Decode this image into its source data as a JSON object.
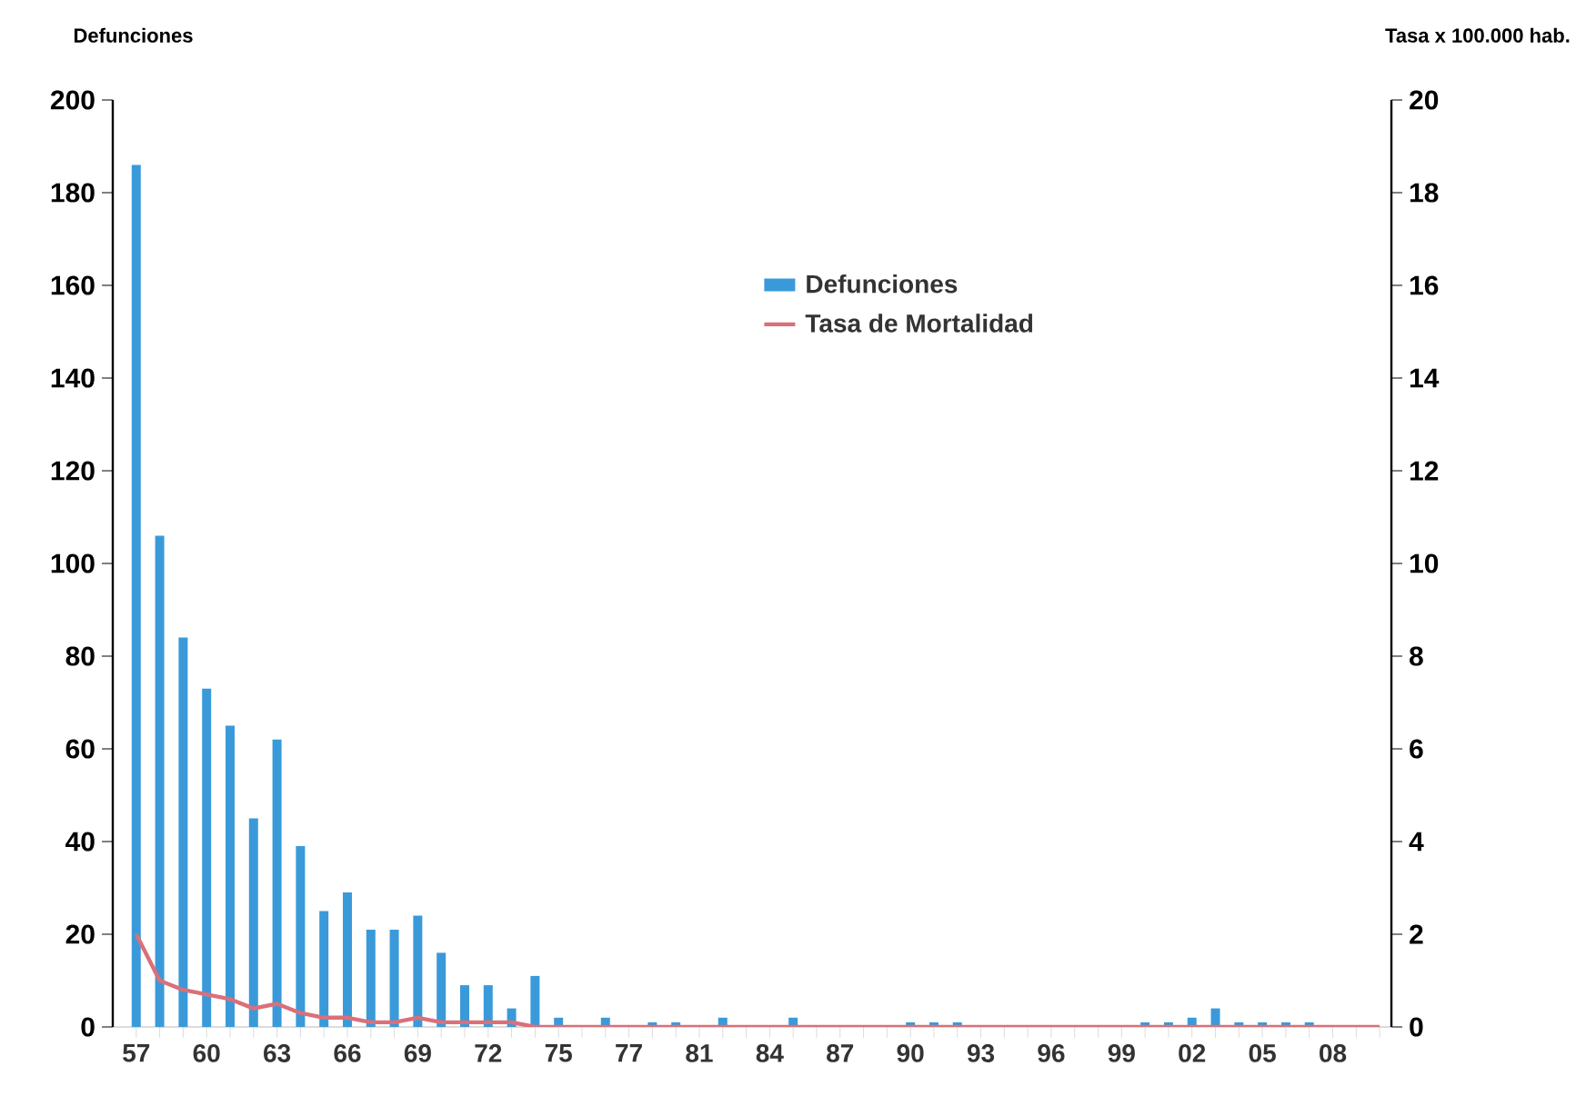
{
  "chart_data": {
    "type": "bar",
    "ylabel": "Defunciones",
    "y2label": "Tasa x 100.000 hab.",
    "categories": [
      "57",
      null,
      null,
      "60",
      null,
      null,
      "63",
      null,
      null,
      "66",
      null,
      null,
      "69",
      null,
      null,
      "72",
      null,
      null,
      "75",
      null,
      null,
      "77",
      null,
      null,
      "81",
      null,
      null,
      "84",
      null,
      null,
      "87",
      null,
      null,
      "90",
      null,
      null,
      "93",
      null,
      null,
      "96",
      null,
      null,
      "99",
      null,
      null,
      "02",
      null,
      null,
      "05",
      null,
      null,
      "08",
      null,
      null
    ],
    "series": [
      {
        "name": "Defunciones",
        "color": "#3a9ad9",
        "values": [
          186,
          106,
          84,
          73,
          65,
          45,
          62,
          39,
          25,
          29,
          21,
          21,
          24,
          16,
          9,
          9,
          4,
          11,
          2,
          0,
          2,
          0,
          1,
          1,
          0,
          2,
          0,
          0,
          2,
          0,
          0,
          0,
          0,
          1,
          1,
          1,
          0,
          0,
          0,
          0,
          0,
          0,
          0,
          1,
          1,
          2,
          4,
          1,
          1,
          1,
          1,
          0,
          0,
          0
        ]
      },
      {
        "name": "Tasa de Mortalidad",
        "type": "line",
        "axis": "y2",
        "color": "#d9707a",
        "values": [
          2.0,
          1.0,
          0.8,
          0.7,
          0.6,
          0.4,
          0.5,
          0.3,
          0.2,
          0.2,
          0.1,
          0.1,
          0.2,
          0.1,
          0.1,
          0.1,
          0.1,
          0,
          0,
          0,
          0,
          0,
          0,
          0,
          0,
          0,
          0,
          0,
          0,
          0,
          0,
          0,
          0,
          0,
          0,
          0,
          0,
          0,
          0,
          0,
          0,
          0,
          0,
          0,
          0,
          0,
          0,
          0,
          0,
          0,
          0,
          0,
          0,
          0
        ]
      }
    ],
    "ylim": [
      0,
      200
    ],
    "yticks": [
      0,
      20,
      40,
      60,
      80,
      100,
      120,
      140,
      160,
      180,
      200
    ],
    "y2lim": [
      0,
      20
    ],
    "y2ticks": [
      0,
      2,
      4,
      6,
      8,
      10,
      12,
      14,
      16,
      18,
      20
    ],
    "legend": "top right",
    "grid": false,
    "marker": "none"
  }
}
